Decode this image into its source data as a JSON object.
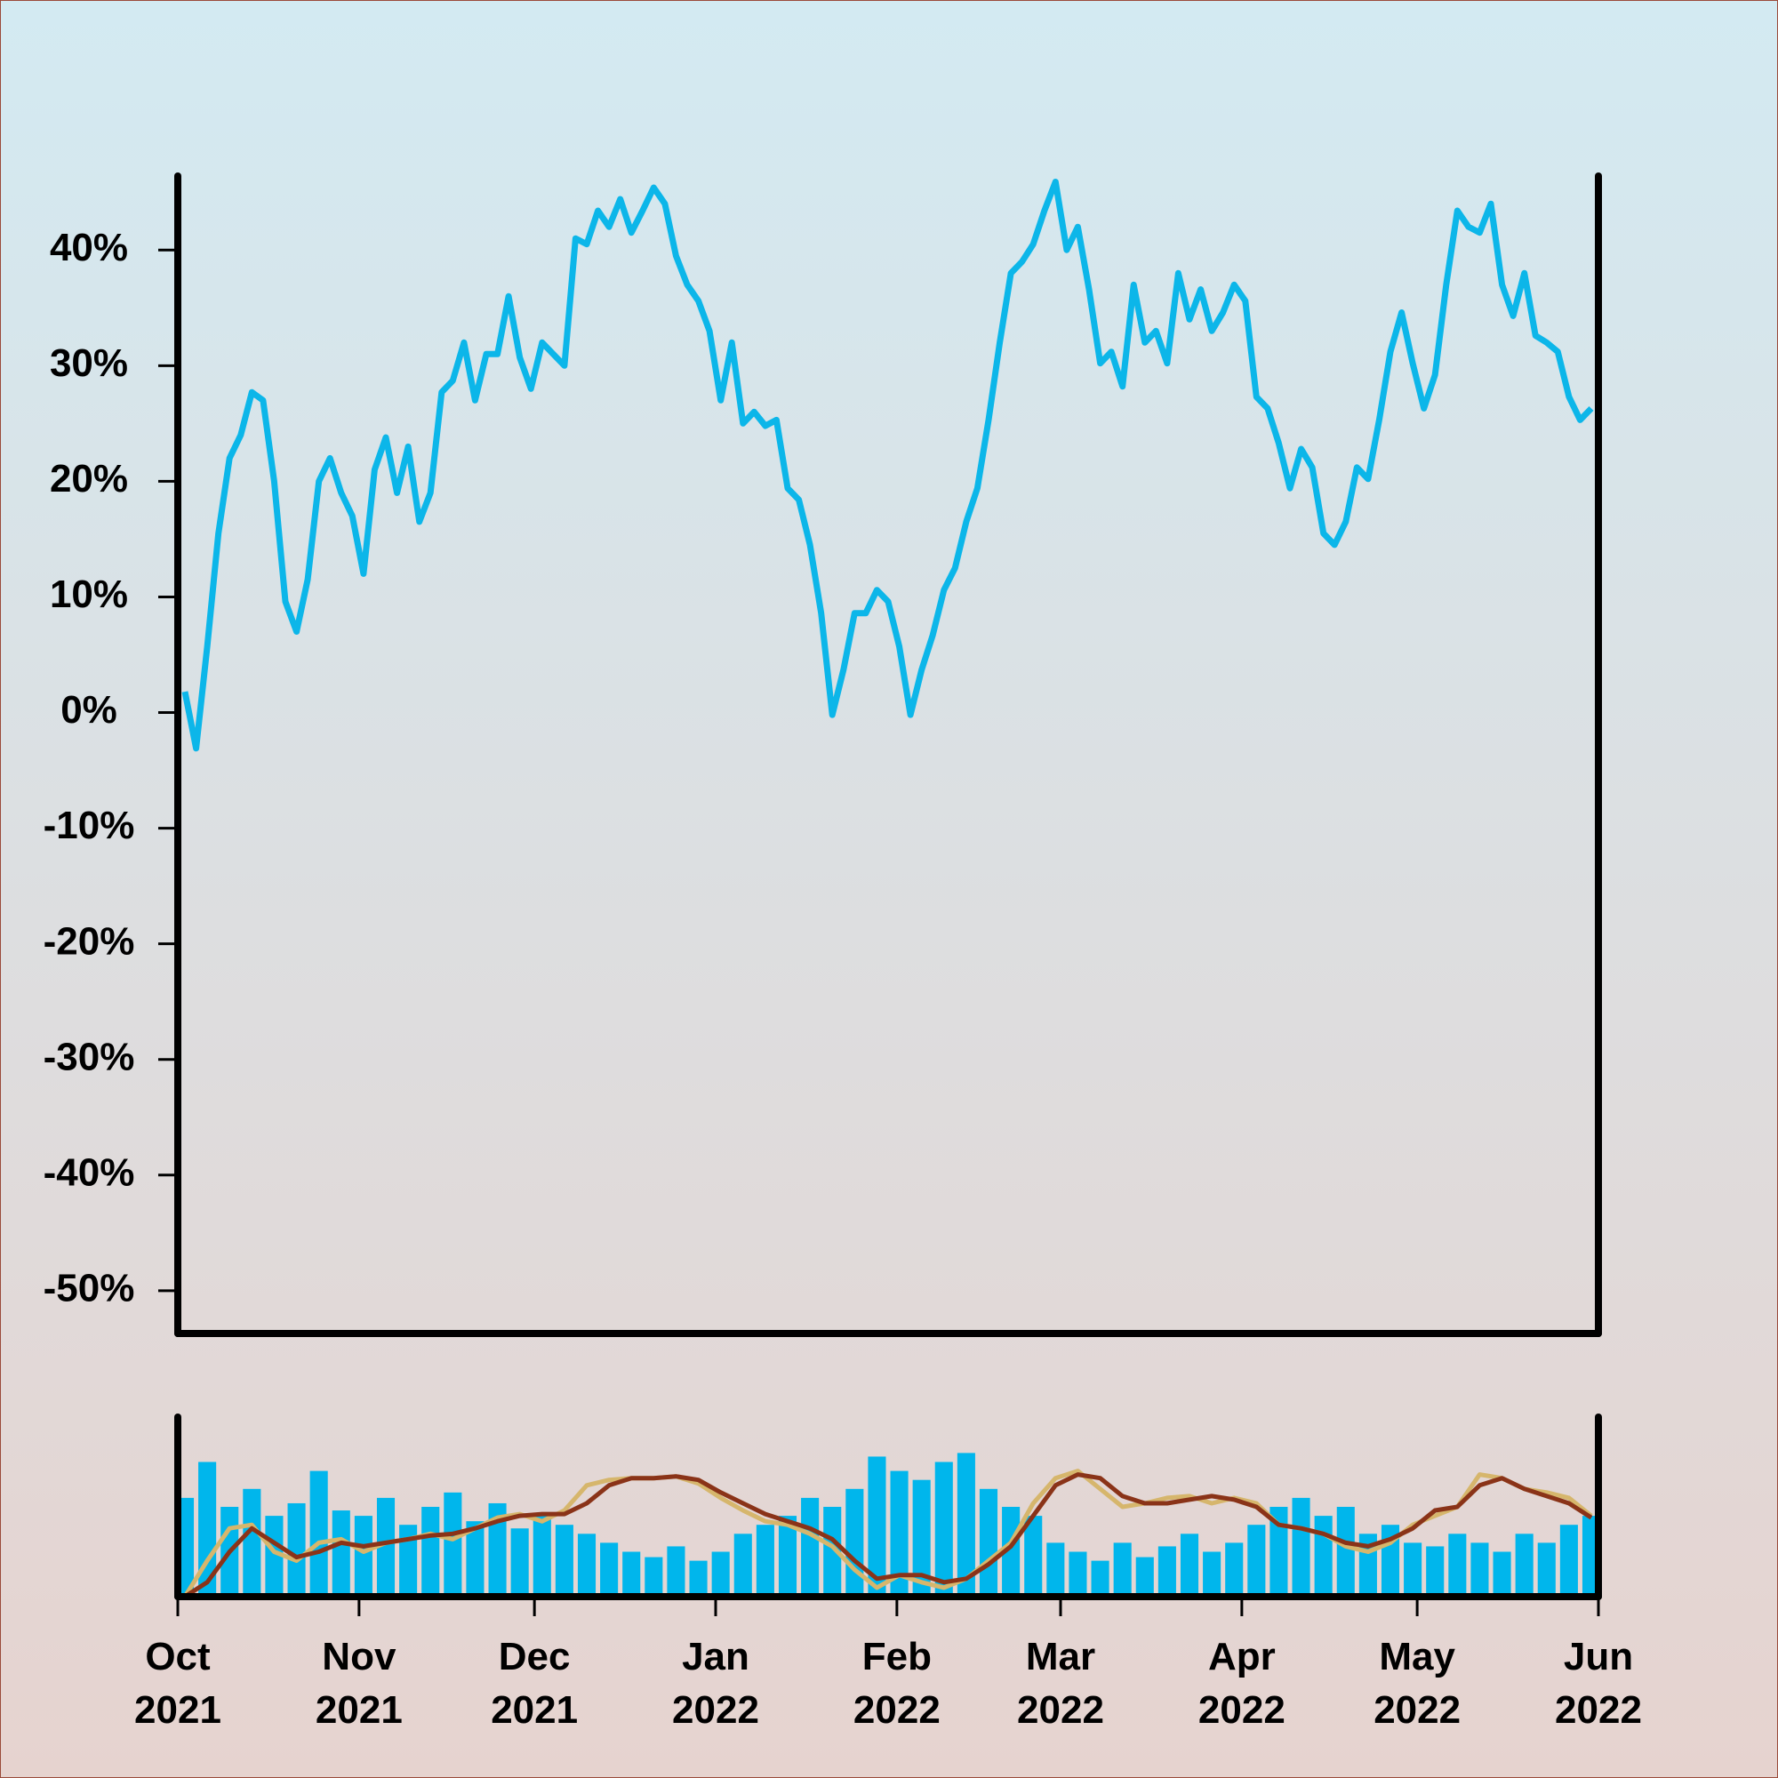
{
  "chart_data": [
    {
      "type": "line",
      "color": "#0cb6e9",
      "xlim": [
        "2021-10",
        "2022-06"
      ],
      "ylim": [
        -53.7,
        46.4
      ],
      "yticks": [
        {
          "value": -50,
          "label": "-50%"
        },
        {
          "value": -40,
          "label": "-40%"
        },
        {
          "value": -30,
          "label": "-30%"
        },
        {
          "value": -20,
          "label": "-20%"
        },
        {
          "value": -10,
          "label": "-10%"
        },
        {
          "value": 0,
          "label": "0%"
        },
        {
          "value": 10,
          "label": "10%"
        },
        {
          "value": 20,
          "label": "20%"
        },
        {
          "value": 30,
          "label": "30%"
        },
        {
          "value": 40,
          "label": "40%"
        }
      ],
      "values": [
        1.8,
        -3.1,
        5.7,
        15.5,
        22,
        24,
        27.7,
        27,
        20,
        9.6,
        7,
        11.5,
        20,
        22,
        19,
        17,
        12,
        21,
        23.8,
        19,
        23,
        16.5,
        19,
        27.7,
        28.7,
        32,
        27,
        31,
        31,
        36,
        30.7,
        28,
        32,
        31,
        30,
        41,
        40.5,
        43.4,
        42,
        44.4,
        41.5,
        43.4,
        45.4,
        44,
        39.5,
        37,
        35.6,
        33,
        27,
        32,
        25,
        26,
        24.8,
        25.3,
        19.4,
        18.4,
        14.5,
        8.6,
        -0.2,
        3.7,
        8.6,
        8.6,
        10.6,
        9.6,
        5.7,
        -0.2,
        3.7,
        6.7,
        10.6,
        12.5,
        16.5,
        19.4,
        25.3,
        32,
        38,
        39,
        40.5,
        43.4,
        45.9,
        40,
        42,
        36.6,
        30.2,
        31.2,
        28.2,
        37,
        32,
        33,
        30.2,
        38,
        34,
        36.6,
        33,
        34.6,
        37,
        35.6,
        27.3,
        26.3,
        23.3,
        19.4,
        22.8,
        21.2,
        15.5,
        14.5,
        16.5,
        21.2,
        20.2,
        25.3,
        31.2,
        34.6,
        30.2,
        26.3,
        29.2,
        37,
        43.4,
        42,
        41.5,
        44,
        37,
        34.3,
        38,
        32.6,
        32,
        31.2,
        27.3,
        25.3,
        26.3
      ]
    },
    {
      "type": "bar",
      "color": "#00b6ec",
      "xlim": [
        "2021-10",
        "2022-06"
      ],
      "ylim": [
        0,
        100
      ],
      "xticks": [
        {
          "value": "2021-10",
          "label": "Oct 2021"
        },
        {
          "value": "2021-11",
          "label": "Nov 2021"
        },
        {
          "value": "2021-12",
          "label": "Dec 2021"
        },
        {
          "value": "2022-01",
          "label": "Jan 2022"
        },
        {
          "value": "2022-02",
          "label": "Feb 2022"
        },
        {
          "value": "2022-03",
          "label": "Mar 2022"
        },
        {
          "value": "2022-04",
          "label": "Apr 2022"
        },
        {
          "value": "2022-05",
          "label": "May 2022"
        },
        {
          "value": "2022-06",
          "label": "Jun 2022"
        }
      ],
      "values": [
        55,
        75,
        50,
        60,
        45,
        52,
        70,
        48,
        45,
        55,
        40,
        50,
        58,
        42,
        52,
        38,
        45,
        40,
        35,
        30,
        25,
        22,
        28,
        20,
        25,
        35,
        40,
        45,
        55,
        50,
        60,
        78,
        70,
        65,
        75,
        80,
        60,
        50,
        45,
        30,
        25,
        20,
        30,
        22,
        28,
        35,
        25,
        30,
        40,
        50,
        55,
        45,
        50,
        35,
        40,
        30,
        28,
        35,
        30,
        25,
        35,
        30,
        40,
        45
      ],
      "lines": [
        {
          "color": "#d6b66c",
          "values": [
            0,
            20,
            38,
            40,
            25,
            20,
            30,
            32,
            25,
            30,
            32,
            35,
            32,
            38,
            44,
            46,
            42,
            48,
            62,
            65,
            66,
            66,
            67,
            63,
            55,
            48,
            42,
            40,
            35,
            28,
            15,
            5,
            12,
            8,
            5,
            10,
            20,
            30,
            52,
            66,
            70,
            60,
            50,
            52,
            55,
            56,
            52,
            55,
            52,
            40,
            38,
            35,
            28,
            25,
            30,
            40,
            45,
            50,
            68,
            66,
            60,
            58,
            55,
            45
          ]
        },
        {
          "color": "#8a3318",
          "values": [
            0,
            8,
            25,
            38,
            30,
            22,
            25,
            30,
            28,
            30,
            32,
            34,
            35,
            38,
            42,
            45,
            46,
            46,
            52,
            62,
            66,
            66,
            67,
            65,
            58,
            52,
            46,
            42,
            38,
            32,
            20,
            10,
            12,
            12,
            8,
            10,
            18,
            28,
            45,
            62,
            68,
            66,
            56,
            52,
            52,
            54,
            56,
            54,
            50,
            40,
            38,
            35,
            30,
            28,
            32,
            38,
            48,
            50,
            62,
            66,
            60,
            56,
            52,
            44
          ]
        }
      ]
    }
  ]
}
